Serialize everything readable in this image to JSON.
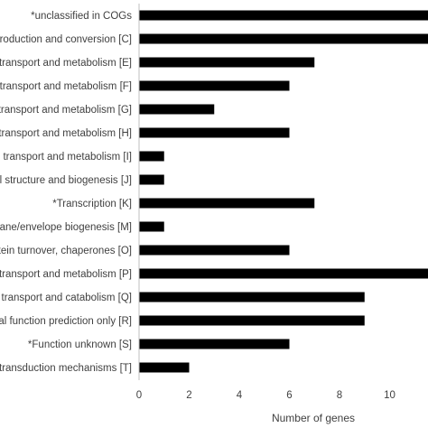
{
  "chart_data": {
    "type": "bar",
    "orientation": "horizontal",
    "categories": [
      "*unclassified in COGs",
      "Energy production and conversion [C]",
      "Amino acid transport and metabolism [E]",
      "Nucleotide transport and metabolism [F]",
      "Carbohydrate transport and metabolism [G]",
      "Coenzyme transport and metabolism [H]",
      "Lipid transport and metabolism [I]",
      "Translation, ribosomal structure and biogenesis [J]",
      "*Transcription [K]",
      "Cell wall/membrane/envelope biogenesis [M]",
      "Posttranslational modification, protein turnover, chaperones [O]",
      "Inorganic ion transport and metabolism [P]",
      "Secondary metabolites biosynthesis, transport and catabolism [Q]",
      "General function prediction only [R]",
      "*Function unknown [S]",
      "Signal transduction mechanisms [T]"
    ],
    "values": [
      12,
      12,
      7,
      6,
      3,
      6,
      1,
      1,
      7,
      1,
      6,
      12,
      9,
      9,
      6,
      2
    ],
    "xlabel": "Number of genes",
    "xticks": [
      "0",
      "2",
      "4",
      "6",
      "8",
      "10"
    ],
    "xlim": [
      0,
      11.8
    ],
    "grid": false,
    "bar_color": "#000000"
  }
}
